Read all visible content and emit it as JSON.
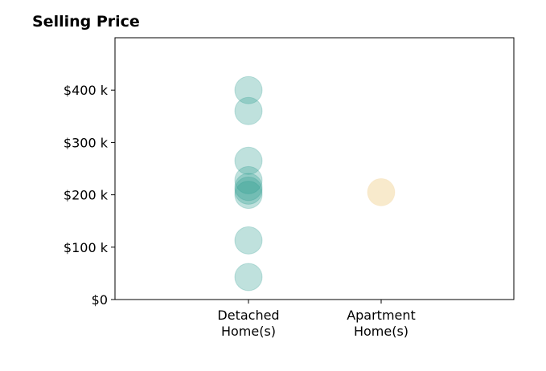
{
  "chart_data": {
    "type": "scatter",
    "title": "Selling Price",
    "xlabel": "",
    "ylabel": "",
    "categories": [
      [
        "Detached",
        "Home(s)"
      ],
      [
        "Apartment",
        "Home(s)"
      ]
    ],
    "y_ticks": [
      {
        "value": 0,
        "label": "$0"
      },
      {
        "value": 100,
        "label": "$100 k"
      },
      {
        "value": 200,
        "label": "$200 k"
      },
      {
        "value": 300,
        "label": "$300 k"
      },
      {
        "value": 400,
        "label": "$400 k"
      }
    ],
    "ylim": [
      0,
      500
    ],
    "grid": false,
    "series": [
      {
        "category_index": 0,
        "color": "#2a9d8f",
        "values": [
          400,
          360,
          265,
          228,
          215,
          208,
          200,
          113,
          43
        ]
      },
      {
        "category_index": 1,
        "color": "#f2d59a",
        "values": [
          205
        ]
      }
    ]
  }
}
